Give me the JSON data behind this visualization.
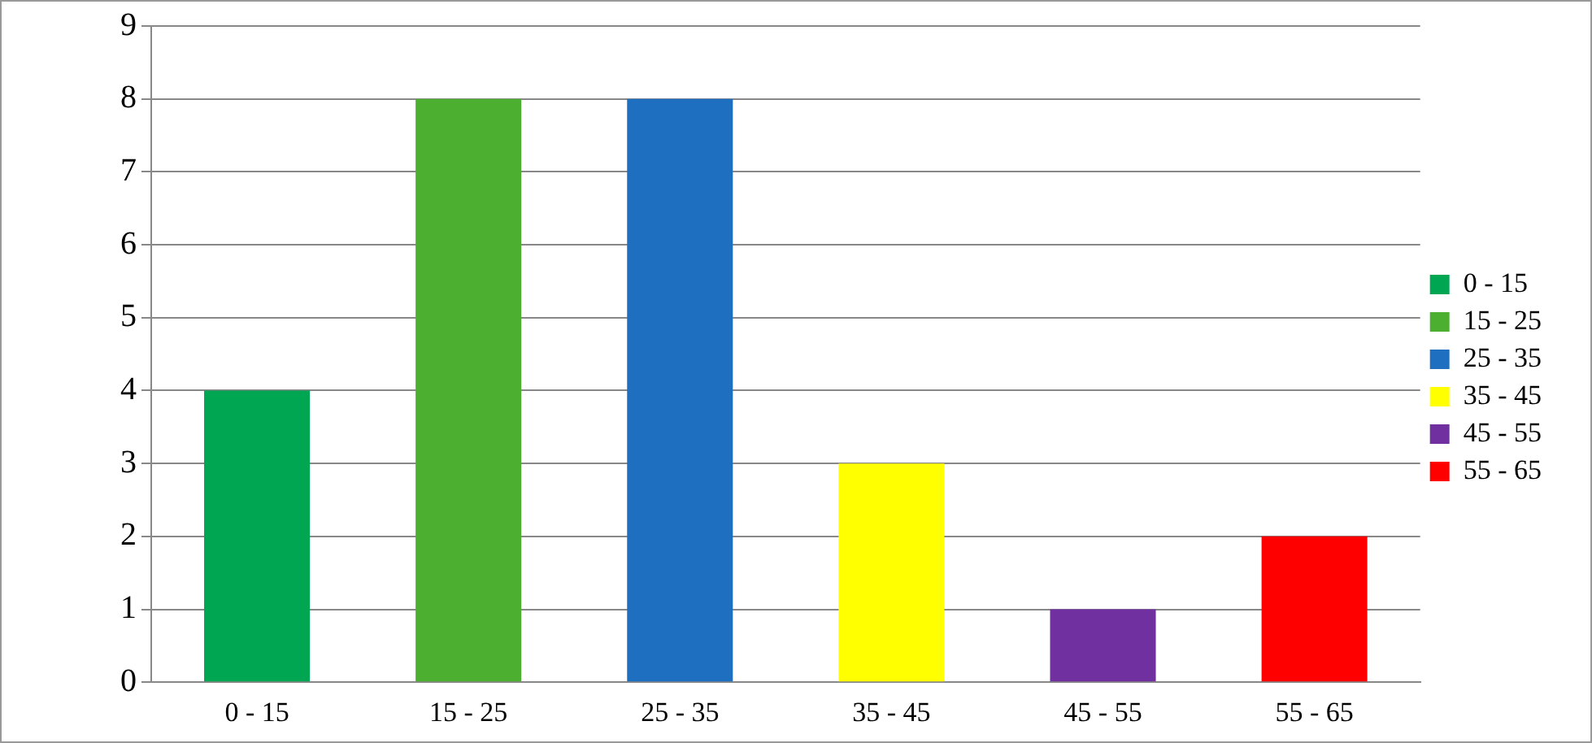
{
  "chart_data": {
    "type": "bar",
    "categories": [
      "0 - 15",
      "15 - 25",
      "25 - 35",
      "35 - 45",
      "45 - 55",
      "55 - 65"
    ],
    "series": [
      {
        "name": "0 - 15",
        "color": "#00a651",
        "values": [
          4,
          null,
          null,
          null,
          null,
          null
        ]
      },
      {
        "name": "15 - 25",
        "color": "#4caf2f",
        "values": [
          null,
          8,
          null,
          null,
          null,
          null
        ]
      },
      {
        "name": "25 - 35",
        "color": "#1f6fc0",
        "values": [
          null,
          null,
          8,
          null,
          null,
          null
        ]
      },
      {
        "name": "35 - 45",
        "color": "#ffff00",
        "values": [
          null,
          null,
          null,
          3,
          null,
          null
        ]
      },
      {
        "name": "45 - 55",
        "color": "#7030a0",
        "values": [
          null,
          null,
          null,
          null,
          1,
          null
        ]
      },
      {
        "name": "55 - 65",
        "color": "#ff0000",
        "values": [
          null,
          null,
          null,
          null,
          null,
          2
        ]
      }
    ],
    "ylim": [
      0,
      9
    ],
    "yticks": [
      0,
      1,
      2,
      3,
      4,
      5,
      6,
      7,
      8,
      9
    ],
    "grid": "y",
    "legend": "right"
  }
}
